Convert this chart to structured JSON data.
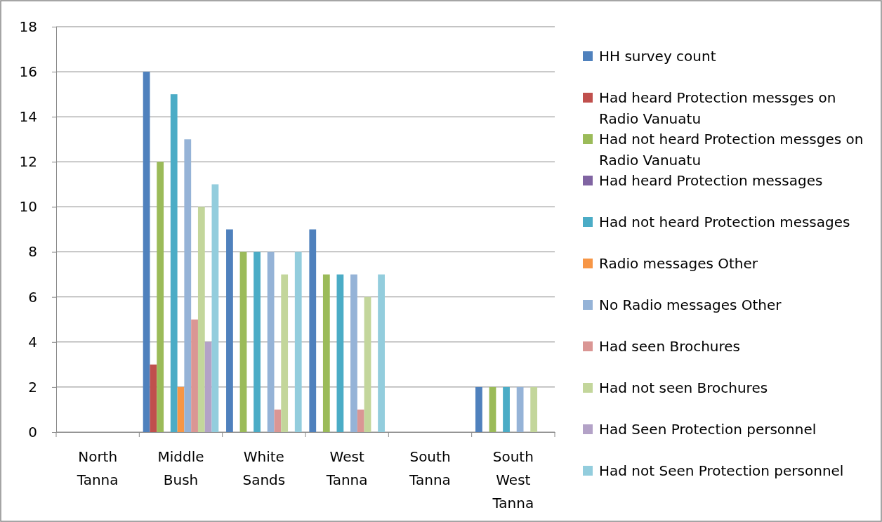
{
  "chart_data": {
    "type": "bar",
    "categories": [
      "North Tanna",
      "Middle Bush",
      "White Sands",
      "West Tanna",
      "South Tanna",
      "South West Tanna"
    ],
    "ylim": [
      0,
      18
    ],
    "yticks": [
      0,
      2,
      4,
      6,
      8,
      10,
      12,
      14,
      16,
      18
    ],
    "grid": "y",
    "legend": "right",
    "series": [
      {
        "name": "HH survey count",
        "color": "#4f81bd",
        "values": [
          0,
          16,
          9,
          9,
          0,
          2
        ]
      },
      {
        "name": "Had heard Protection messges on Radio Vanuatu",
        "color": "#c0504d",
        "values": [
          0,
          3,
          0,
          0,
          0,
          0
        ]
      },
      {
        "name": "Had not heard Protection messges on Radio Vanuatu",
        "color": "#9bbb59",
        "values": [
          0,
          12,
          8,
          7,
          0,
          2
        ]
      },
      {
        "name": "Had heard Protection messages",
        "color": "#8064a2",
        "values": [
          0,
          0,
          0,
          0,
          0,
          0
        ]
      },
      {
        "name": "Had not heard Protection messages",
        "color": "#4bacc6",
        "values": [
          0,
          15,
          8,
          7,
          0,
          2
        ]
      },
      {
        "name": "Radio messages Other",
        "color": "#f79646",
        "values": [
          0,
          2,
          0,
          0,
          0,
          0
        ]
      },
      {
        "name": "No Radio messages Other",
        "color": "#95b3d7",
        "values": [
          0,
          13,
          8,
          7,
          0,
          2
        ]
      },
      {
        "name": "Had seen Brochures",
        "color": "#da9694",
        "values": [
          0,
          5,
          1,
          1,
          0,
          0
        ]
      },
      {
        "name": "Had not seen Brochures",
        "color": "#c3d69b",
        "values": [
          0,
          10,
          7,
          6,
          0,
          2
        ]
      },
      {
        "name": "Had Seen Protection personnel",
        "color": "#b3a2c7",
        "values": [
          0,
          4,
          0,
          0,
          0,
          0
        ]
      },
      {
        "name": "Had not Seen Protection personnel",
        "color": "#93cddd",
        "values": [
          0,
          11,
          8,
          7,
          0,
          0
        ]
      }
    ]
  }
}
